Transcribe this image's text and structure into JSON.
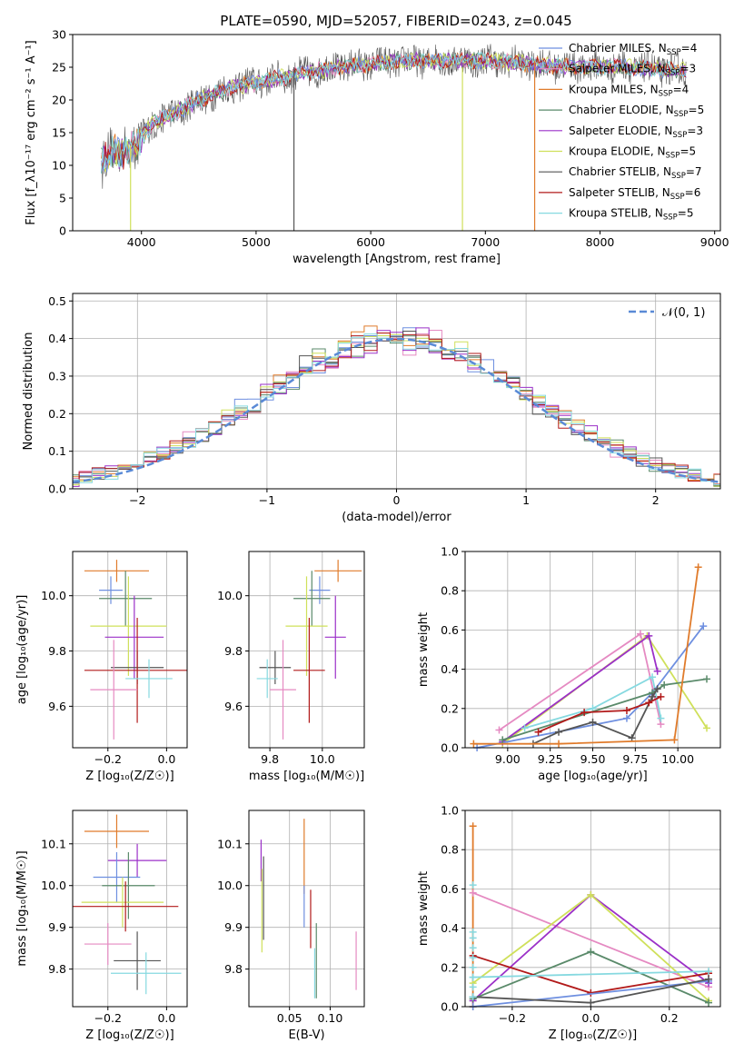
{
  "figure_title": "PLATE=0590, MJD=52057, FIBERID=0243, z=0.045",
  "colors": {
    "C_MILES": "#6e8fe0",
    "S_MILES": "#e58ac2",
    "K_MILES": "#e07b2b",
    "C_ELODIE": "#5a8a6a",
    "S_ELODIE": "#9b30c8",
    "K_ELODIE": "#cfe05a",
    "C_STELIB": "#555555",
    "S_STELIB": "#b21a1a",
    "K_STELIB": "#86d9e0",
    "normal": "#5a8ad6",
    "grid": "#b0b0b0"
  },
  "chart_data": [
    {
      "id": "spectrum",
      "type": "line",
      "xlabel": "wavelength [Angstrom, rest frame]",
      "ylabel": "Flux [f_λ10⁻¹⁷ erg cm⁻² s⁻¹ A⁻¹]",
      "xlim": [
        3400,
        9050
      ],
      "ylim": [
        0,
        30
      ],
      "xticks": [
        4000,
        5000,
        6000,
        7000,
        8000,
        9000
      ],
      "yticks": [
        0,
        5,
        10,
        15,
        20,
        25,
        30
      ],
      "grid": false,
      "legend_position": "top-right",
      "legend": [
        {
          "key": "C_MILES",
          "label": "Chabrier MILES, N",
          "sub": "SSP",
          "tail": "=4"
        },
        {
          "key": "S_MILES",
          "label": "Salpeter MILES, N",
          "sub": "SSP",
          "tail": "=3"
        },
        {
          "key": "K_MILES",
          "label": "Kroupa MILES, N",
          "sub": "SSP",
          "tail": "=4"
        },
        {
          "key": "C_ELODIE",
          "label": "Chabrier ELODIE, N",
          "sub": "SSP",
          "tail": "=5"
        },
        {
          "key": "S_ELODIE",
          "label": "Salpeter ELODIE, N",
          "sub": "SSP",
          "tail": "=3"
        },
        {
          "key": "K_ELODIE",
          "label": "Kroupa ELODIE, N",
          "sub": "SSP",
          "tail": "=5"
        },
        {
          "key": "C_STELIB",
          "label": "Chabrier STELIB, N",
          "sub": "SSP",
          "tail": "=7"
        },
        {
          "key": "S_STELIB",
          "label": "Salpeter STELIB, N",
          "sub": "SSP",
          "tail": "=6"
        },
        {
          "key": "K_STELIB",
          "label": "Kroupa STELIB, N",
          "sub": "SSP",
          "tail": "=5"
        }
      ],
      "continuum": [
        [
          3650,
          11
        ],
        [
          3800,
          12
        ],
        [
          3950,
          13
        ],
        [
          4100,
          16.5
        ],
        [
          4300,
          18
        ],
        [
          4500,
          20
        ],
        [
          4800,
          22
        ],
        [
          5100,
          23
        ],
        [
          5400,
          24
        ],
        [
          5700,
          25
        ],
        [
          6000,
          25.5
        ],
        [
          6300,
          26
        ],
        [
          6600,
          26
        ],
        [
          7000,
          26
        ],
        [
          7400,
          25.5
        ],
        [
          7800,
          25
        ],
        [
          8200,
          25
        ],
        [
          8700,
          24.5
        ]
      ],
      "wave_range": [
        3650,
        8750
      ],
      "spikes": [
        {
          "x": 5330,
          "y0": 0,
          "y1": 25,
          "key": "C_STELIB"
        },
        {
          "x": 6800,
          "y0": 0,
          "y1": 25,
          "key": "K_ELODIE"
        },
        {
          "x": 7430,
          "y0": 0,
          "y1": 26,
          "key": "K_MILES"
        },
        {
          "x": 3905,
          "y0": 0,
          "y1": 13,
          "key": "K_ELODIE"
        }
      ]
    },
    {
      "id": "residuals",
      "type": "line",
      "xlabel": "(data-model)/error",
      "ylabel": "Normed distribution",
      "xlim": [
        -2.5,
        2.5
      ],
      "ylim": [
        0,
        0.52
      ],
      "xticks": [
        -2,
        -1,
        0,
        1,
        2
      ],
      "yticks": [
        0.0,
        0.1,
        0.2,
        0.3,
        0.4,
        0.5
      ],
      "grid": true,
      "legend_position": "top-right",
      "legend_label": "𝒩(0, 1)",
      "bin_width": 0.1
    },
    {
      "id": "age_vs_Z",
      "type": "scatter",
      "xlabel": "Z [log₁₀(Z/Z☉)]",
      "ylabel": "age  [log₁₀(age/yr)]",
      "xlim": [
        -0.32,
        0.07
      ],
      "ylim": [
        9.45,
        10.16
      ],
      "xticks": [
        -0.2,
        0.0
      ],
      "yticks": [
        9.6,
        9.8,
        10.0
      ],
      "points": [
        {
          "key": "K_MILES",
          "x": -0.17,
          "y": 10.09,
          "ex": 0.11,
          "ey": 0.04
        },
        {
          "key": "C_MILES",
          "x": -0.19,
          "y": 10.02,
          "ex": 0.04,
          "ey": 0.05
        },
        {
          "key": "C_ELODIE",
          "x": -0.14,
          "y": 9.99,
          "ex": 0.09,
          "ey": 0.1
        },
        {
          "key": "K_ELODIE",
          "x": -0.13,
          "y": 9.89,
          "ex": 0.13,
          "ey": 0.18
        },
        {
          "key": "S_ELODIE",
          "x": -0.11,
          "y": 9.85,
          "ex": 0.1,
          "ey": 0.15
        },
        {
          "key": "C_STELIB",
          "x": -0.1,
          "y": 9.74,
          "ex": 0.09,
          "ey": 0.06
        },
        {
          "key": "S_STELIB",
          "x": -0.1,
          "y": 9.73,
          "ex": 0.18,
          "ey": 0.19
        },
        {
          "key": "K_STELIB",
          "x": -0.06,
          "y": 9.7,
          "ex": 0.08,
          "ey": 0.07
        },
        {
          "key": "S_MILES",
          "x": -0.18,
          "y": 9.66,
          "ex": 0.08,
          "ey": 0.18
        }
      ]
    },
    {
      "id": "age_vs_mass",
      "type": "scatter",
      "xlabel": "mass [log₁₀(M/M☉)]",
      "ylabel": "",
      "xlim": [
        9.72,
        10.16
      ],
      "ylim": [
        9.45,
        10.16
      ],
      "xticks": [
        9.8,
        10.0
      ],
      "yticks": [
        9.6,
        9.8,
        10.0
      ],
      "points": [
        {
          "key": "K_MILES",
          "x": 10.06,
          "y": 10.09,
          "ex": 0.09,
          "ey": 0.04
        },
        {
          "key": "C_MILES",
          "x": 9.99,
          "y": 10.02,
          "ex": 0.04,
          "ey": 0.05
        },
        {
          "key": "C_ELODIE",
          "x": 9.96,
          "y": 9.99,
          "ex": 0.07,
          "ey": 0.1
        },
        {
          "key": "K_ELODIE",
          "x": 9.94,
          "y": 9.89,
          "ex": 0.08,
          "ey": 0.18
        },
        {
          "key": "S_ELODIE",
          "x": 10.05,
          "y": 9.85,
          "ex": 0.04,
          "ey": 0.15
        },
        {
          "key": "C_STELIB",
          "x": 9.82,
          "y": 9.74,
          "ex": 0.06,
          "ey": 0.06
        },
        {
          "key": "S_STELIB",
          "x": 9.95,
          "y": 9.73,
          "ex": 0.06,
          "ey": 0.19
        },
        {
          "key": "K_STELIB",
          "x": 9.79,
          "y": 9.7,
          "ex": 0.04,
          "ey": 0.07
        },
        {
          "key": "S_MILES",
          "x": 9.85,
          "y": 9.66,
          "ex": 0.05,
          "ey": 0.18
        }
      ]
    },
    {
      "id": "weight_vs_age",
      "type": "line",
      "xlabel": "age  [log₁₀(age/yr)]",
      "ylabel": "mass weight",
      "xlim": [
        8.75,
        10.25
      ],
      "ylim": [
        0,
        1
      ],
      "xticks": [
        9.0,
        9.25,
        9.5,
        9.75,
        10.0
      ],
      "yticks": [
        0.0,
        0.2,
        0.4,
        0.6,
        0.8,
        1.0
      ],
      "grid": true,
      "series": [
        {
          "key": "S_MILES",
          "x": [
            8.95,
            9.78,
            9.9
          ],
          "y": [
            0.09,
            0.58,
            0.12
          ]
        },
        {
          "key": "K_ELODIE",
          "x": [
            8.97,
            9.82,
            10.17
          ],
          "y": [
            0.02,
            0.57,
            0.1
          ]
        },
        {
          "key": "S_ELODIE",
          "x": [
            8.97,
            9.83,
            9.88
          ],
          "y": [
            0.03,
            0.57,
            0.39
          ]
        },
        {
          "key": "C_MILES",
          "x": [
            8.82,
            9.7,
            9.85,
            10.15
          ],
          "y": [
            0.0,
            0.15,
            0.28,
            0.62
          ]
        },
        {
          "key": "K_STELIB",
          "x": [
            9.1,
            9.5,
            9.85,
            9.9
          ],
          "y": [
            0.1,
            0.2,
            0.36,
            0.15
          ]
        },
        {
          "key": "C_ELODIE",
          "x": [
            8.97,
            9.85,
            9.92,
            10.17
          ],
          "y": [
            0.04,
            0.28,
            0.32,
            0.35
          ]
        },
        {
          "key": "C_STELIB",
          "x": [
            9.15,
            9.3,
            9.5,
            9.73,
            9.85,
            9.88
          ],
          "y": [
            0.02,
            0.08,
            0.13,
            0.05,
            0.26,
            0.3
          ]
        },
        {
          "key": "S_STELIB",
          "x": [
            9.18,
            9.45,
            9.7,
            9.83,
            9.9
          ],
          "y": [
            0.08,
            0.18,
            0.19,
            0.23,
            0.26
          ]
        },
        {
          "key": "K_MILES",
          "x": [
            8.8,
            9.3,
            9.98,
            10.12
          ],
          "y": [
            0.02,
            0.02,
            0.04,
            0.92
          ]
        }
      ]
    },
    {
      "id": "mass_vs_Z",
      "type": "scatter",
      "xlabel": "Z [log₁₀(Z/Z☉)]",
      "ylabel": "mass [log₁₀(M/M☉)]",
      "xlim": [
        -0.32,
        0.07
      ],
      "ylim": [
        9.71,
        10.18
      ],
      "xticks": [
        -0.2,
        0.0
      ],
      "yticks": [
        9.8,
        9.9,
        10.0,
        10.1
      ],
      "points": [
        {
          "key": "K_MILES",
          "x": -0.17,
          "y": 10.13,
          "ex": 0.11,
          "ey": 0.04
        },
        {
          "key": "S_ELODIE",
          "x": -0.1,
          "y": 10.06,
          "ex": 0.1,
          "ey": 0.04
        },
        {
          "key": "C_MILES",
          "x": -0.17,
          "y": 10.02,
          "ex": 0.08,
          "ey": 0.06
        },
        {
          "key": "C_ELODIE",
          "x": -0.13,
          "y": 10.0,
          "ex": 0.09,
          "ey": 0.08
        },
        {
          "key": "K_ELODIE",
          "x": -0.15,
          "y": 9.96,
          "ex": 0.14,
          "ey": 0.06
        },
        {
          "key": "S_STELIB",
          "x": -0.14,
          "y": 9.95,
          "ex": 0.18,
          "ey": 0.06
        },
        {
          "key": "S_MILES",
          "x": -0.2,
          "y": 9.86,
          "ex": 0.08,
          "ey": 0.05
        },
        {
          "key": "C_STELIB",
          "x": -0.1,
          "y": 9.82,
          "ex": 0.08,
          "ey": 0.07
        },
        {
          "key": "K_STELIB",
          "x": -0.07,
          "y": 9.79,
          "ex": 0.12,
          "ey": 0.05
        }
      ]
    },
    {
      "id": "mass_vs_EBV",
      "type": "scatter",
      "xlabel": "E(B-V)",
      "ylabel": "",
      "xlim": [
        0.0,
        0.142
      ],
      "ylim": [
        9.71,
        10.18
      ],
      "xticks": [
        0.05,
        0.1
      ],
      "yticks": [
        9.8,
        9.9,
        10.0,
        10.1
      ],
      "points": [
        {
          "key": "S_ELODIE",
          "x": 0.015,
          "y": 10.06,
          "ey": 0.05
        },
        {
          "key": "C_STELIB",
          "x": 0.018,
          "y": 9.97,
          "ey": 0.1
        },
        {
          "key": "K_ELODIE",
          "x": 0.016,
          "y": 9.94,
          "ey": 0.1
        },
        {
          "key": "K_MILES",
          "x": 0.068,
          "y": 10.07,
          "ey": 0.09
        },
        {
          "key": "C_MILES",
          "x": 0.068,
          "y": 9.95,
          "ey": 0.05
        },
        {
          "key": "S_STELIB",
          "x": 0.076,
          "y": 9.92,
          "ey": 0.07
        },
        {
          "key": "C_ELODIE",
          "x": 0.083,
          "y": 9.82,
          "ey": 0.09
        },
        {
          "key": "K_STELIB",
          "x": 0.081,
          "y": 9.79,
          "ey": 0.06
        },
        {
          "key": "S_MILES",
          "x": 0.132,
          "y": 9.82,
          "ey": 0.07
        }
      ]
    },
    {
      "id": "weight_vs_Z",
      "type": "line",
      "xlabel": "Z [log₁₀(Z/Z☉)]",
      "ylabel": "mass weight",
      "xlim": [
        -0.32,
        0.33
      ],
      "ylim": [
        0,
        1
      ],
      "xticks": [
        -0.2,
        0.0,
        0.2
      ],
      "yticks": [
        0.0,
        0.2,
        0.4,
        0.6,
        0.8,
        1.0
      ],
      "grid": true,
      "series": [
        {
          "key": "K_MILES",
          "x": [
            -0.3,
            -0.3
          ],
          "y": [
            0.0,
            0.92
          ]
        },
        {
          "key": "S_MILES",
          "x": [
            -0.3,
            0.3
          ],
          "y": [
            0.58,
            0.1
          ]
        },
        {
          "key": "S_ELODIE",
          "x": [
            -0.3,
            0.0,
            0.3
          ],
          "y": [
            0.03,
            0.57,
            0.12
          ]
        },
        {
          "key": "K_ELODIE",
          "x": [
            -0.3,
            0.0,
            0.3
          ],
          "y": [
            0.12,
            0.57,
            0.03
          ]
        },
        {
          "key": "C_ELODIE",
          "x": [
            -0.3,
            0.0,
            0.3
          ],
          "y": [
            0.04,
            0.28,
            0.02
          ]
        },
        {
          "key": "S_STELIB",
          "x": [
            -0.3,
            0.0,
            0.3
          ],
          "y": [
            0.26,
            0.07,
            0.17
          ]
        },
        {
          "key": "K_STELIB",
          "x": [
            -0.3,
            0.3
          ],
          "y": [
            0.15,
            0.18
          ]
        },
        {
          "key": "C_MILES",
          "x": [
            -0.3,
            0.3
          ],
          "y": [
            0.0,
            0.13
          ]
        },
        {
          "key": "C_STELIB",
          "x": [
            -0.3,
            0.0,
            0.3
          ],
          "y": [
            0.05,
            0.02,
            0.14
          ]
        }
      ],
      "markers_x": -0.3,
      "markers_y": [
        0.05,
        0.1,
        0.15,
        0.2,
        0.25,
        0.3,
        0.35,
        0.38,
        0.62
      ]
    }
  ]
}
